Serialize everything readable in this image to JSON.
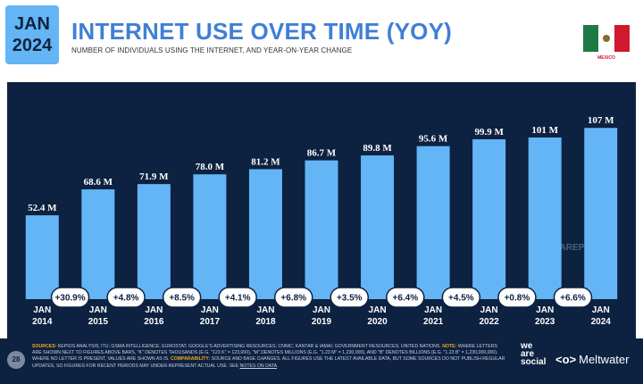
{
  "header": {
    "month": "JAN",
    "year": "2024",
    "title": "INTERNET USE OVER TIME (YOY)",
    "subtitle": "NUMBER OF INDIVIDUALS USING THE INTERNET, AND YEAR-ON-YEAR CHANGE",
    "country": "MEXICO"
  },
  "chart_data": {
    "type": "bar",
    "title": "INTERNET USE OVER TIME (YOY)",
    "subtitle": "NUMBER OF INDIVIDUALS USING THE INTERNET, AND YEAR-ON-YEAR CHANGE",
    "categories": [
      "JAN 2014",
      "JAN 2015",
      "JAN 2016",
      "JAN 2017",
      "JAN 2018",
      "JAN 2019",
      "JAN 2020",
      "JAN 2021",
      "JAN 2022",
      "JAN 2023",
      "JAN 2024"
    ],
    "values": [
      52.4,
      68.6,
      71.9,
      78.0,
      81.2,
      86.7,
      89.8,
      95.6,
      99.9,
      101,
      107
    ],
    "value_labels": [
      "52.4 M",
      "68.6 M",
      "71.9 M",
      "78.0 M",
      "81.2 M",
      "86.7 M",
      "89.8 M",
      "95.6 M",
      "99.9 M",
      "101 M",
      "107 M"
    ],
    "changes": [
      "+30.9%",
      "+4.8%",
      "+8.5%",
      "+4.1%",
      "+6.8%",
      "+3.5%",
      "+6.4%",
      "+4.5%",
      "+0.8%",
      "+6.6%"
    ],
    "ylim": [
      0,
      130
    ],
    "colors": {
      "bar": "#63b5f6",
      "background": "#0d2140",
      "label": "#ffffff",
      "change_fill": "#ffffff",
      "change_text": "#0d2140"
    }
  },
  "watermark": "DATAREPORTAL",
  "footer": {
    "page_number": "28",
    "sources_label": "SOURCES:",
    "sources_text": "KEPIOS ANALYSIS; ITU; GSMA INTELLIGENCE; EUROSTAT; GOOGLE'S ADVERTISING RESOURCES; CNNIC; KANTAR & IAMAI; GOVERNMENT RESOURCES; UNITED NATIONS.",
    "note_label": "NOTE:",
    "note_text": "WHERE LETTERS ARE SHOWN NEXT TO FIGURES ABOVE BARS, \"K\" DENOTES THOUSANDS (E.G. \"123 K\" = 123,000), \"M\" DENOTES MILLIONS (E.G. \"1.23 M\" = 1,230,000), AND \"B\" DENOTES BILLIONS (E.G. \"1.23 B\" = 1,230,000,000). WHERE NO LETTER IS PRESENT, VALUES ARE SHOWN AS IS.",
    "comparability_label": "COMPARABILITY:",
    "comparability_text": "SOURCE AND BASE CHANGES. ALL FIGURES USE THE LATEST AVAILABLE DATA, BUT SOME SOURCES DO NOT PUBLISH REGULAR UPDATES, SO FIGURES FOR RECENT PERIODS MAY UNDER-REPRESENT ACTUAL USE. SEE",
    "notes_link": "NOTES ON DATA",
    "brand_we": "we",
    "brand_are": "are",
    "brand_social": "social",
    "brand_meltwater": "Meltwater",
    "brand_meltwater_icon": "meltwater-logo-icon"
  }
}
